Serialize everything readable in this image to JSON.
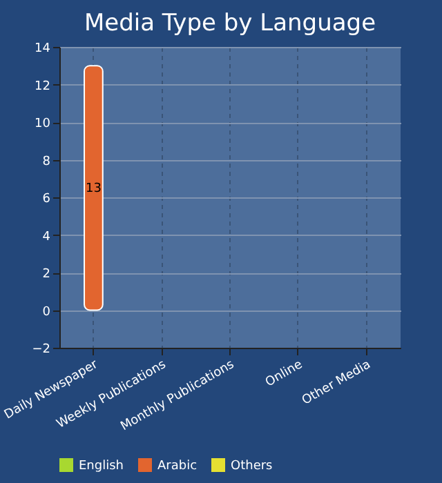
{
  "chart_data": {
    "type": "bar",
    "title": "Media Type by Language",
    "categories": [
      "Daily Newspaper",
      "Weekly Publications",
      "Monthly Publications",
      "Online",
      "Other Media"
    ],
    "series": [
      {
        "name": "English",
        "color": "#a8d830",
        "values": [
          null,
          null,
          null,
          null,
          null
        ]
      },
      {
        "name": "Arabic",
        "color": "#e2652f",
        "values": [
          13,
          null,
          null,
          null,
          null
        ]
      },
      {
        "name": "Others",
        "color": "#e5e032",
        "values": [
          null,
          null,
          null,
          null,
          null
        ]
      }
    ],
    "ylim": [
      -2,
      14
    ],
    "yticks": [
      -2,
      0,
      2,
      4,
      6,
      8,
      10,
      12,
      14
    ],
    "grid": true,
    "legend": "bottom",
    "data_labels": true
  }
}
